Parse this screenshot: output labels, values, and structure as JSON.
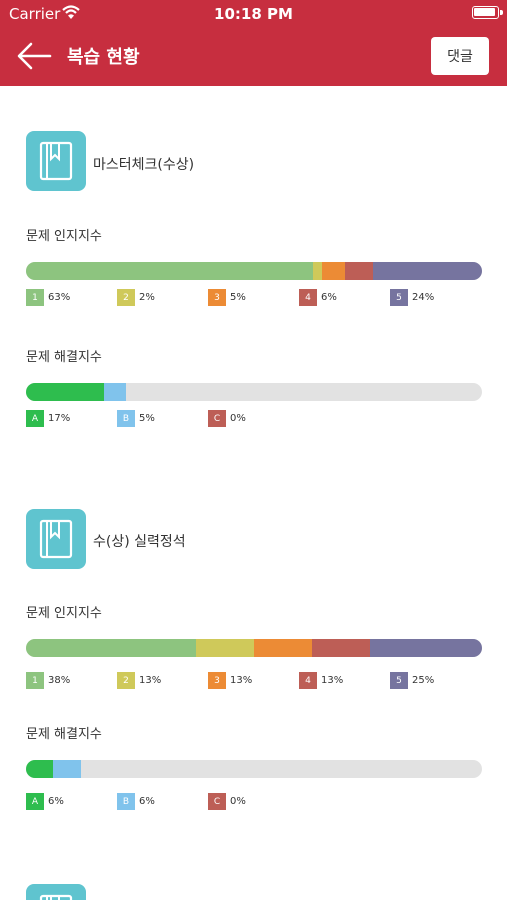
{
  "status": {
    "carrier": "Carrier",
    "time": "10:18 PM"
  },
  "nav": {
    "title": "복습 현황",
    "comment_label": "댓글"
  },
  "labels": {
    "recognition": "문제 인지지수",
    "solving": "문제 해결지수"
  },
  "colors": {
    "header": "#c72e3f",
    "level1": "#8dc47f",
    "level2": "#cfc95a",
    "level3": "#ec8b35",
    "level4": "#bd5e56",
    "level5": "#76749f",
    "gradeA": "#2ebd4e",
    "gradeB": "#80c3ec",
    "gradeC": "#bd5e56",
    "empty": "#e2e2e2",
    "book_icon": "#5fc4cf"
  },
  "books": [
    {
      "title": "마스터체크(수상)",
      "icon": "book-icon",
      "recognition": [
        {
          "key": "1",
          "percent": 63,
          "label": "63%"
        },
        {
          "key": "2",
          "percent": 2,
          "label": "2%"
        },
        {
          "key": "3",
          "percent": 5,
          "label": "5%"
        },
        {
          "key": "4",
          "percent": 6,
          "label": "6%"
        },
        {
          "key": "5",
          "percent": 24,
          "label": "24%"
        }
      ],
      "solving": [
        {
          "key": "A",
          "percent": 17,
          "label": "17%"
        },
        {
          "key": "B",
          "percent": 5,
          "label": "5%"
        },
        {
          "key": "C",
          "percent": 0,
          "label": "0%"
        }
      ]
    },
    {
      "title": "수(상) 실력정석",
      "icon": "book-icon",
      "recognition": [
        {
          "key": "1",
          "percent": 38,
          "label": "38%"
        },
        {
          "key": "2",
          "percent": 13,
          "label": "13%"
        },
        {
          "key": "3",
          "percent": 13,
          "label": "13%"
        },
        {
          "key": "4",
          "percent": 13,
          "label": "13%"
        },
        {
          "key": "5",
          "percent": 25,
          "label": "25%"
        }
      ],
      "solving": [
        {
          "key": "A",
          "percent": 6,
          "label": "6%"
        },
        {
          "key": "B",
          "percent": 6,
          "label": "6%"
        },
        {
          "key": "C",
          "percent": 0,
          "label": "0%"
        }
      ]
    },
    {
      "title": "",
      "icon": "book-icon"
    }
  ]
}
